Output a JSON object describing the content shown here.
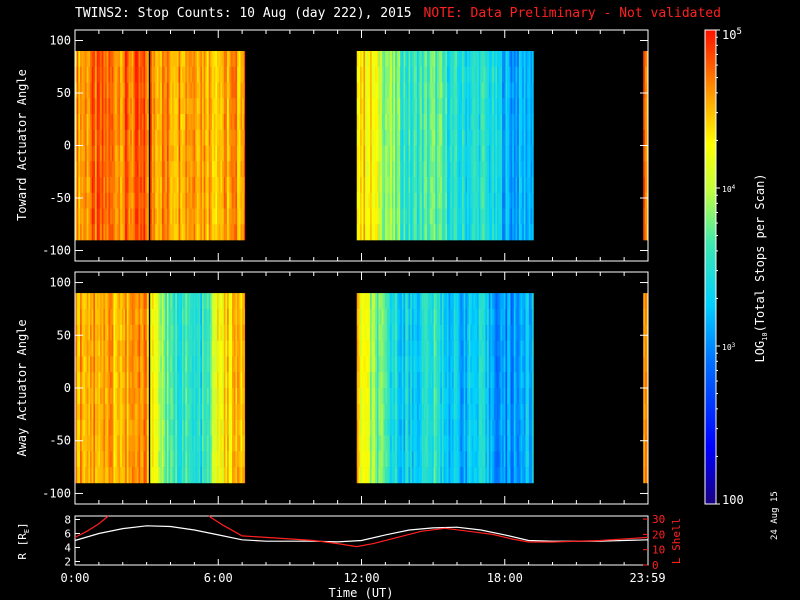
{
  "header": {
    "title": "TWINS2: Stop Counts: 10 Aug (day 222), 2015",
    "note": "NOTE: Data Preliminary - Not validated",
    "note_color": "#ff2020"
  },
  "side_label": "24 Aug 15",
  "colors": {
    "background": "#000000",
    "axes": "#ffffff",
    "ephemeris_r": "#ffffff",
    "ephemeris_lshell": "#ff2020"
  },
  "chart_data": [
    {
      "type": "heatmap",
      "panel": "toward",
      "ylabel": "Toward Actuator Angle",
      "ylim": [
        -110,
        110
      ],
      "yticks": [
        100,
        50,
        0,
        -50,
        -100
      ],
      "x_range_hours": [
        0,
        24
      ],
      "data_angle_range": [
        -90,
        90
      ],
      "data_coverage_hours": [
        [
          0.0,
          7.1
        ],
        [
          11.8,
          19.2
        ],
        [
          23.8,
          24.0
        ]
      ],
      "data_gaps_hours": [
        [
          3.07,
          3.12
        ]
      ],
      "color_scale": "log10",
      "profile_log10": [
        [
          0.0,
          4.6
        ],
        [
          1.0,
          4.7
        ],
        [
          2.0,
          4.7
        ],
        [
          3.0,
          4.7
        ],
        [
          4.0,
          4.6
        ],
        [
          5.0,
          4.7
        ],
        [
          6.0,
          4.5
        ],
        [
          7.0,
          4.6
        ],
        [
          11.8,
          4.5
        ],
        [
          12.5,
          4.2
        ],
        [
          13.0,
          3.9
        ],
        [
          14.0,
          3.5
        ],
        [
          15.0,
          3.7
        ],
        [
          16.0,
          3.4
        ],
        [
          17.0,
          3.5
        ],
        [
          17.7,
          3.3
        ],
        [
          18.3,
          3.1
        ],
        [
          19.0,
          3.2
        ],
        [
          23.8,
          4.6
        ],
        [
          24.0,
          4.6
        ]
      ]
    },
    {
      "type": "heatmap",
      "panel": "away",
      "ylabel": "Away Actuator Angle",
      "ylim": [
        -110,
        110
      ],
      "yticks": [
        100,
        50,
        0,
        -50,
        -100
      ],
      "x_range_hours": [
        0,
        24
      ],
      "data_angle_range": [
        -90,
        90
      ],
      "data_coverage_hours": [
        [
          0.0,
          7.1
        ],
        [
          11.8,
          19.2
        ],
        [
          23.8,
          24.0
        ]
      ],
      "data_gaps_hours": [
        [
          3.07,
          3.12
        ]
      ],
      "color_scale": "log10",
      "profile_log10": [
        [
          0.0,
          4.6
        ],
        [
          1.0,
          4.6
        ],
        [
          2.0,
          4.5
        ],
        [
          3.0,
          4.6
        ],
        [
          3.5,
          4.0
        ],
        [
          4.0,
          3.5
        ],
        [
          4.5,
          3.6
        ],
        [
          5.0,
          3.4
        ],
        [
          5.5,
          3.5
        ],
        [
          6.0,
          4.3
        ],
        [
          7.0,
          4.5
        ],
        [
          11.8,
          4.4
        ],
        [
          12.5,
          3.8
        ],
        [
          13.0,
          3.5
        ],
        [
          14.0,
          3.3
        ],
        [
          15.0,
          3.5
        ],
        [
          16.0,
          3.2
        ],
        [
          17.0,
          3.3
        ],
        [
          18.0,
          3.0
        ],
        [
          19.0,
          3.2
        ],
        [
          23.8,
          4.6
        ],
        [
          24.0,
          4.6
        ]
      ]
    },
    {
      "type": "line",
      "panel": "ephemeris",
      "x_range_hours": [
        0,
        24
      ],
      "ylabel": "R [R",
      "ylabel_sub": "E",
      "ylabel_end": "]",
      "ylim": [
        1.5,
        8.5
      ],
      "yticks": [
        8,
        6,
        4,
        2
      ],
      "ylabel_right": "L Shell",
      "ylim_right": [
        0,
        32
      ],
      "yticks_right": [
        30,
        20,
        10,
        0
      ],
      "series": [
        {
          "axis": "left",
          "color": "#ffffff",
          "points": [
            [
              0,
              5.0
            ],
            [
              1,
              6.0
            ],
            [
              2,
              6.7
            ],
            [
              3,
              7.1
            ],
            [
              4,
              7.0
            ],
            [
              5,
              6.5
            ],
            [
              6,
              5.8
            ],
            [
              7,
              5.1
            ],
            [
              8,
              4.9
            ],
            [
              10,
              4.9
            ],
            [
              11,
              4.8
            ],
            [
              12,
              5.0
            ],
            [
              13,
              5.8
            ],
            [
              14,
              6.5
            ],
            [
              15,
              6.8
            ],
            [
              16,
              6.9
            ],
            [
              17,
              6.5
            ],
            [
              18,
              5.8
            ],
            [
              19,
              5.0
            ],
            [
              20,
              4.9
            ],
            [
              22,
              4.9
            ],
            [
              24,
              5.1
            ]
          ]
        },
        {
          "axis": "right",
          "color": "#ff2020",
          "segments": [
            [
              [
                0,
                18
              ],
              [
                0.5,
                22
              ],
              [
                1,
                27
              ],
              [
                1.4,
                32
              ]
            ],
            [
              [
                5.6,
                32
              ],
              [
                6.2,
                26
              ],
              [
                7,
                19
              ],
              [
                8,
                18
              ],
              [
                10,
                16
              ],
              [
                11,
                14
              ],
              [
                11.8,
                12
              ],
              [
                12.5,
                14
              ],
              [
                13.5,
                18
              ],
              [
                14.5,
                22
              ],
              [
                15.5,
                24
              ],
              [
                16.5,
                22
              ],
              [
                17.5,
                20
              ],
              [
                18.3,
                17
              ],
              [
                19,
                15
              ],
              [
                20,
                15
              ],
              [
                22,
                16
              ],
              [
                24,
                18
              ]
            ]
          ]
        }
      ],
      "xticks": [
        "0:00",
        "6:00",
        "12:00",
        "18:00",
        "23:59"
      ],
      "xtick_hours": [
        0,
        6,
        12,
        18,
        23.98
      ],
      "xlabel": "Time (UT)"
    }
  ],
  "colorbar": {
    "scale": "log10",
    "range": [
      2,
      5
    ],
    "label": "LOG",
    "label_sub": "10",
    "label_end": "(Total Stops per Scan)",
    "tick_labels": [
      "10",
      "10",
      "10",
      "100"
    ],
    "tick_sups": [
      "5",
      "4",
      "3",
      ""
    ],
    "tick_log10": [
      5,
      4,
      3,
      2
    ]
  }
}
